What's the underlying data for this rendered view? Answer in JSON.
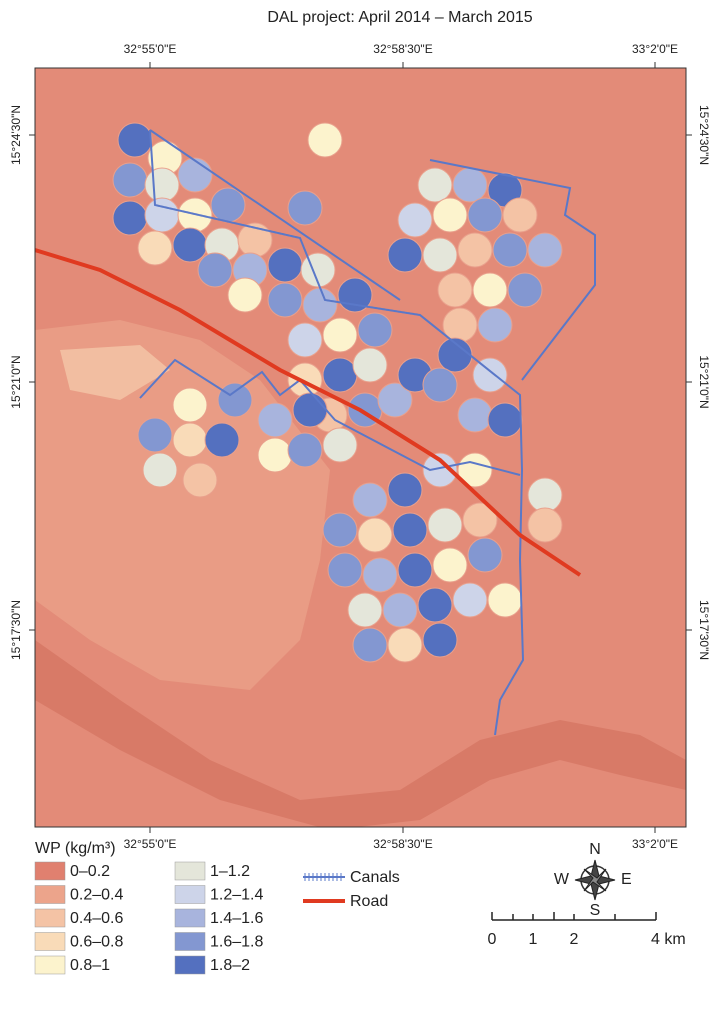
{
  "title": "DAL project: April 2014 – March 2015",
  "longitudes": [
    "32°55'0\"E",
    "32°58'30\"E",
    "33°2'0\"E"
  ],
  "latitudes": [
    "15°24'30\"N",
    "15°21'0\"N",
    "15°17'30\"N"
  ],
  "legend": {
    "title": "WP (kg/m³)",
    "items": [
      {
        "label": "0–0.2",
        "color": "#e0806f"
      },
      {
        "label": "0.2–0.4",
        "color": "#eca48b"
      },
      {
        "label": "0.4–0.6",
        "color": "#f4c3a5"
      },
      {
        "label": "0.6–0.8",
        "color": "#f9dbb8"
      },
      {
        "label": "0.8–1",
        "color": "#fcf3cd"
      },
      {
        "label": "1–1.2",
        "color": "#e4e6da"
      },
      {
        "label": "1.2–1.4",
        "color": "#cdd4e9"
      },
      {
        "label": "1.4–1.6",
        "color": "#a8b4dd"
      },
      {
        "label": "1.6–1.8",
        "color": "#8397d1"
      },
      {
        "label": "1.8–2",
        "color": "#5470bf"
      }
    ],
    "canals": "Canals",
    "road": "Road"
  },
  "compass": {
    "n": "N",
    "s": "S",
    "e": "E",
    "w": "W"
  },
  "scale_bar": [
    "0",
    "1",
    "2",
    "4 km"
  ]
}
